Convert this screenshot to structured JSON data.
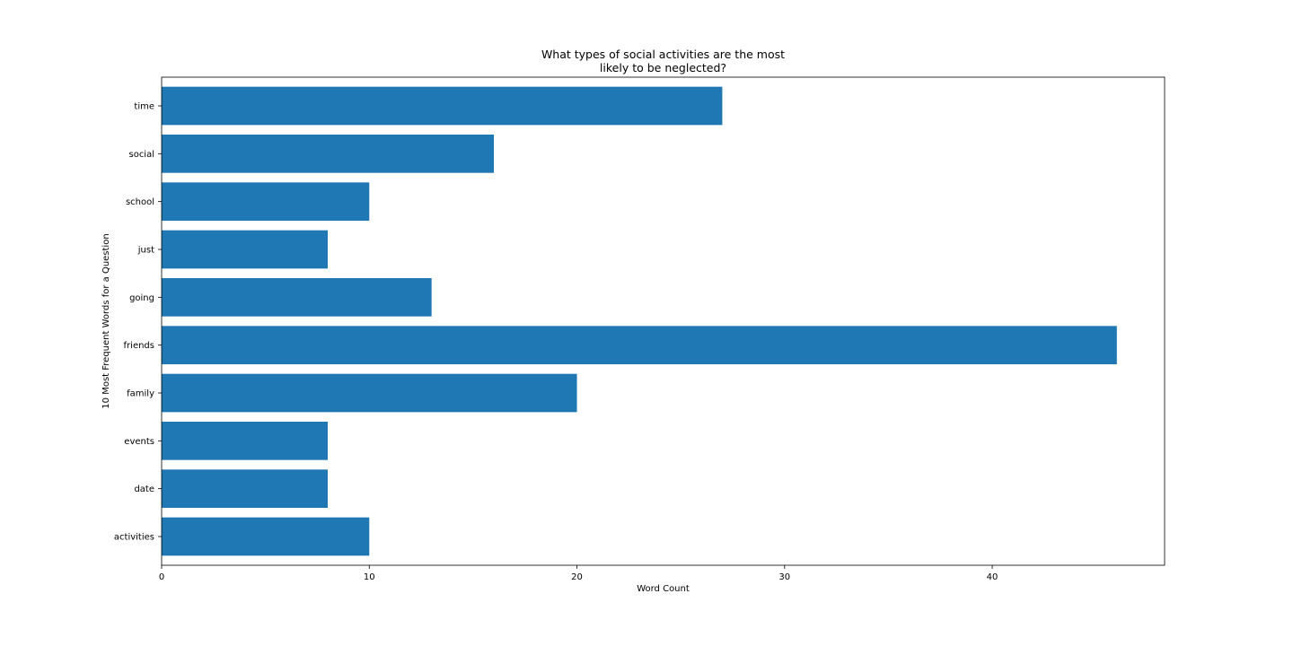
{
  "chart_data": {
    "type": "bar",
    "orientation": "horizontal",
    "title": "What types of social activities are the most likely to be neglected?",
    "title_lines": [
      "What types of social activities are the most",
      "likely to be neglected?"
    ],
    "xlabel": "Word Count",
    "ylabel": "10 Most Frequent Words for a Question",
    "categories": [
      "activities",
      "date",
      "events",
      "family",
      "friends",
      "going",
      "just",
      "school",
      "social",
      "time"
    ],
    "values": [
      10,
      8,
      8,
      20,
      46,
      13,
      8,
      10,
      16,
      27
    ],
    "xlim": [
      0,
      48.3
    ],
    "xticks": [
      0,
      10,
      20,
      30,
      40
    ],
    "grid": false,
    "bar_color": "#1f77b4"
  }
}
